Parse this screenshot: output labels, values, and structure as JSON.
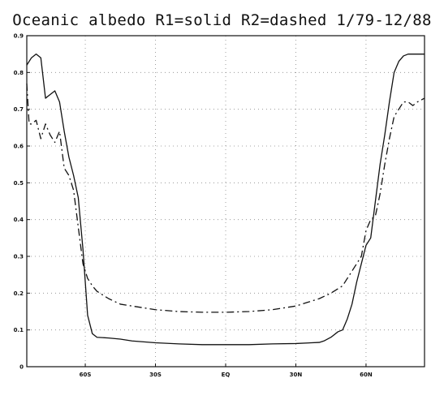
{
  "chart_data": {
    "type": "line",
    "title": "Oceanic albedo R1=solid R2=dashed 1/79-12/88",
    "xlabel": "",
    "ylabel": "",
    "xlim": [
      -85,
      85
    ],
    "ylim": [
      0,
      0.9
    ],
    "x_ticks": [
      {
        "value": -60,
        "label": "60S"
      },
      {
        "value": -30,
        "label": "30S"
      },
      {
        "value": 0,
        "label": "EQ"
      },
      {
        "value": 30,
        "label": "30N"
      },
      {
        "value": 60,
        "label": "60N"
      }
    ],
    "y_ticks": [
      {
        "value": 0,
        "label": "0"
      },
      {
        "value": 0.1,
        "label": "0.1"
      },
      {
        "value": 0.2,
        "label": "0.2"
      },
      {
        "value": 0.3,
        "label": "0.3"
      },
      {
        "value": 0.4,
        "label": "0.4"
      },
      {
        "value": 0.5,
        "label": "0.5"
      },
      {
        "value": 0.6,
        "label": "0.6"
      },
      {
        "value": 0.7,
        "label": "0.7"
      },
      {
        "value": 0.8,
        "label": "0.8"
      },
      {
        "value": 0.9,
        "label": "0.9"
      }
    ],
    "grid": true,
    "series": [
      {
        "line_style": "solid",
        "color": "#111111",
        "x": [
          -85,
          -83,
          -81,
          -79,
          -77,
          -75,
          -73,
          -71,
          -69,
          -67,
          -65,
          -63,
          -61,
          -59,
          -57,
          -55,
          -50,
          -45,
          -40,
          -30,
          -20,
          -10,
          0,
          10,
          20,
          30,
          40,
          42,
          45,
          48,
          50,
          52,
          54,
          56,
          58,
          60,
          62,
          64,
          66,
          68,
          70,
          72,
          74,
          76,
          78,
          80,
          82,
          85
        ],
        "y": [
          0.82,
          0.84,
          0.85,
          0.84,
          0.73,
          0.74,
          0.75,
          0.72,
          0.64,
          0.57,
          0.52,
          0.46,
          0.32,
          0.14,
          0.09,
          0.08,
          0.078,
          0.075,
          0.07,
          0.065,
          0.062,
          0.06,
          0.06,
          0.06,
          0.062,
          0.063,
          0.066,
          0.07,
          0.08,
          0.095,
          0.1,
          0.13,
          0.17,
          0.23,
          0.28,
          0.33,
          0.35,
          0.45,
          0.55,
          0.63,
          0.72,
          0.8,
          0.83,
          0.845,
          0.85,
          0.85,
          0.85,
          0.85
        ]
      },
      {
        "line_style": "dashed",
        "color": "#111111",
        "x": [
          -85,
          -84,
          -83,
          -81,
          -79,
          -77,
          -75,
          -73,
          -71,
          -69,
          -67,
          -65,
          -63,
          -61,
          -59,
          -57,
          -55,
          -50,
          -45,
          -40,
          -35,
          -30,
          -20,
          -10,
          0,
          10,
          20,
          25,
          30,
          35,
          40,
          45,
          50,
          52,
          54,
          56,
          58,
          60,
          62,
          64,
          66,
          68,
          70,
          72,
          74,
          76,
          78,
          80,
          82,
          85
        ],
        "y": [
          0.77,
          0.66,
          0.66,
          0.67,
          0.62,
          0.66,
          0.63,
          0.61,
          0.64,
          0.54,
          0.52,
          0.48,
          0.38,
          0.28,
          0.24,
          0.22,
          0.205,
          0.185,
          0.17,
          0.165,
          0.16,
          0.155,
          0.15,
          0.148,
          0.148,
          0.15,
          0.155,
          0.16,
          0.165,
          0.175,
          0.185,
          0.2,
          0.22,
          0.24,
          0.26,
          0.28,
          0.3,
          0.37,
          0.4,
          0.41,
          0.47,
          0.55,
          0.62,
          0.68,
          0.7,
          0.72,
          0.72,
          0.71,
          0.72,
          0.73
        ]
      }
    ]
  }
}
